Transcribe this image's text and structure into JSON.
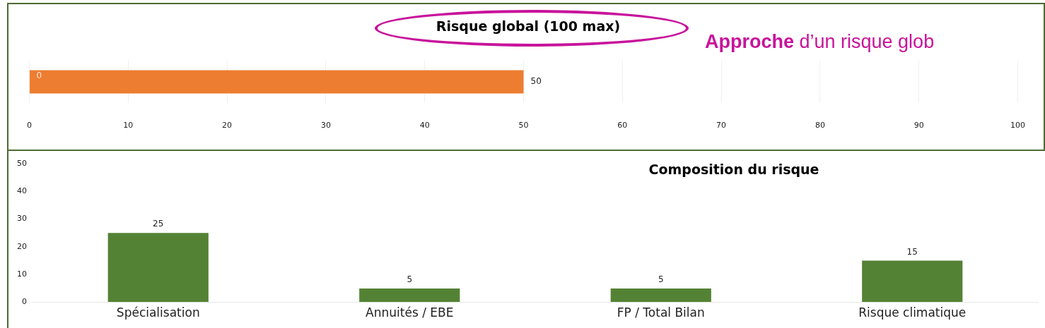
{
  "chart_data": [
    {
      "type": "bar",
      "orientation": "horizontal",
      "title": "Risque global (100 max)",
      "categories": [
        null
      ],
      "series": [
        {
          "color": "#ed7d31",
          "values": [
            50
          ],
          "value_labels": [
            "50"
          ]
        }
      ],
      "xlim": [
        0,
        100
      ],
      "xticks": [
        0,
        10,
        20,
        30,
        40,
        50,
        60,
        70,
        80,
        90,
        100
      ],
      "grid": "x",
      "legend": false,
      "tick_labels": "x",
      "annotations": [
        {
          "text": "0",
          "x": 0
        },
        "Approche d’un risque glob"
      ]
    },
    {
      "type": "bar",
      "title": "Composition du risque",
      "categories": [
        "Spécialisation",
        "Annuités / EBE",
        "FP / Total Bilan",
        "Risque climatique"
      ],
      "series": [
        {
          "color": "#548235",
          "values": [
            25,
            5,
            5,
            15
          ]
        }
      ],
      "ylim": [
        0,
        50
      ],
      "yticks": [
        0,
        10,
        20,
        30,
        40,
        50
      ],
      "grid": false,
      "legend": false,
      "data_labels": true
    }
  ]
}
